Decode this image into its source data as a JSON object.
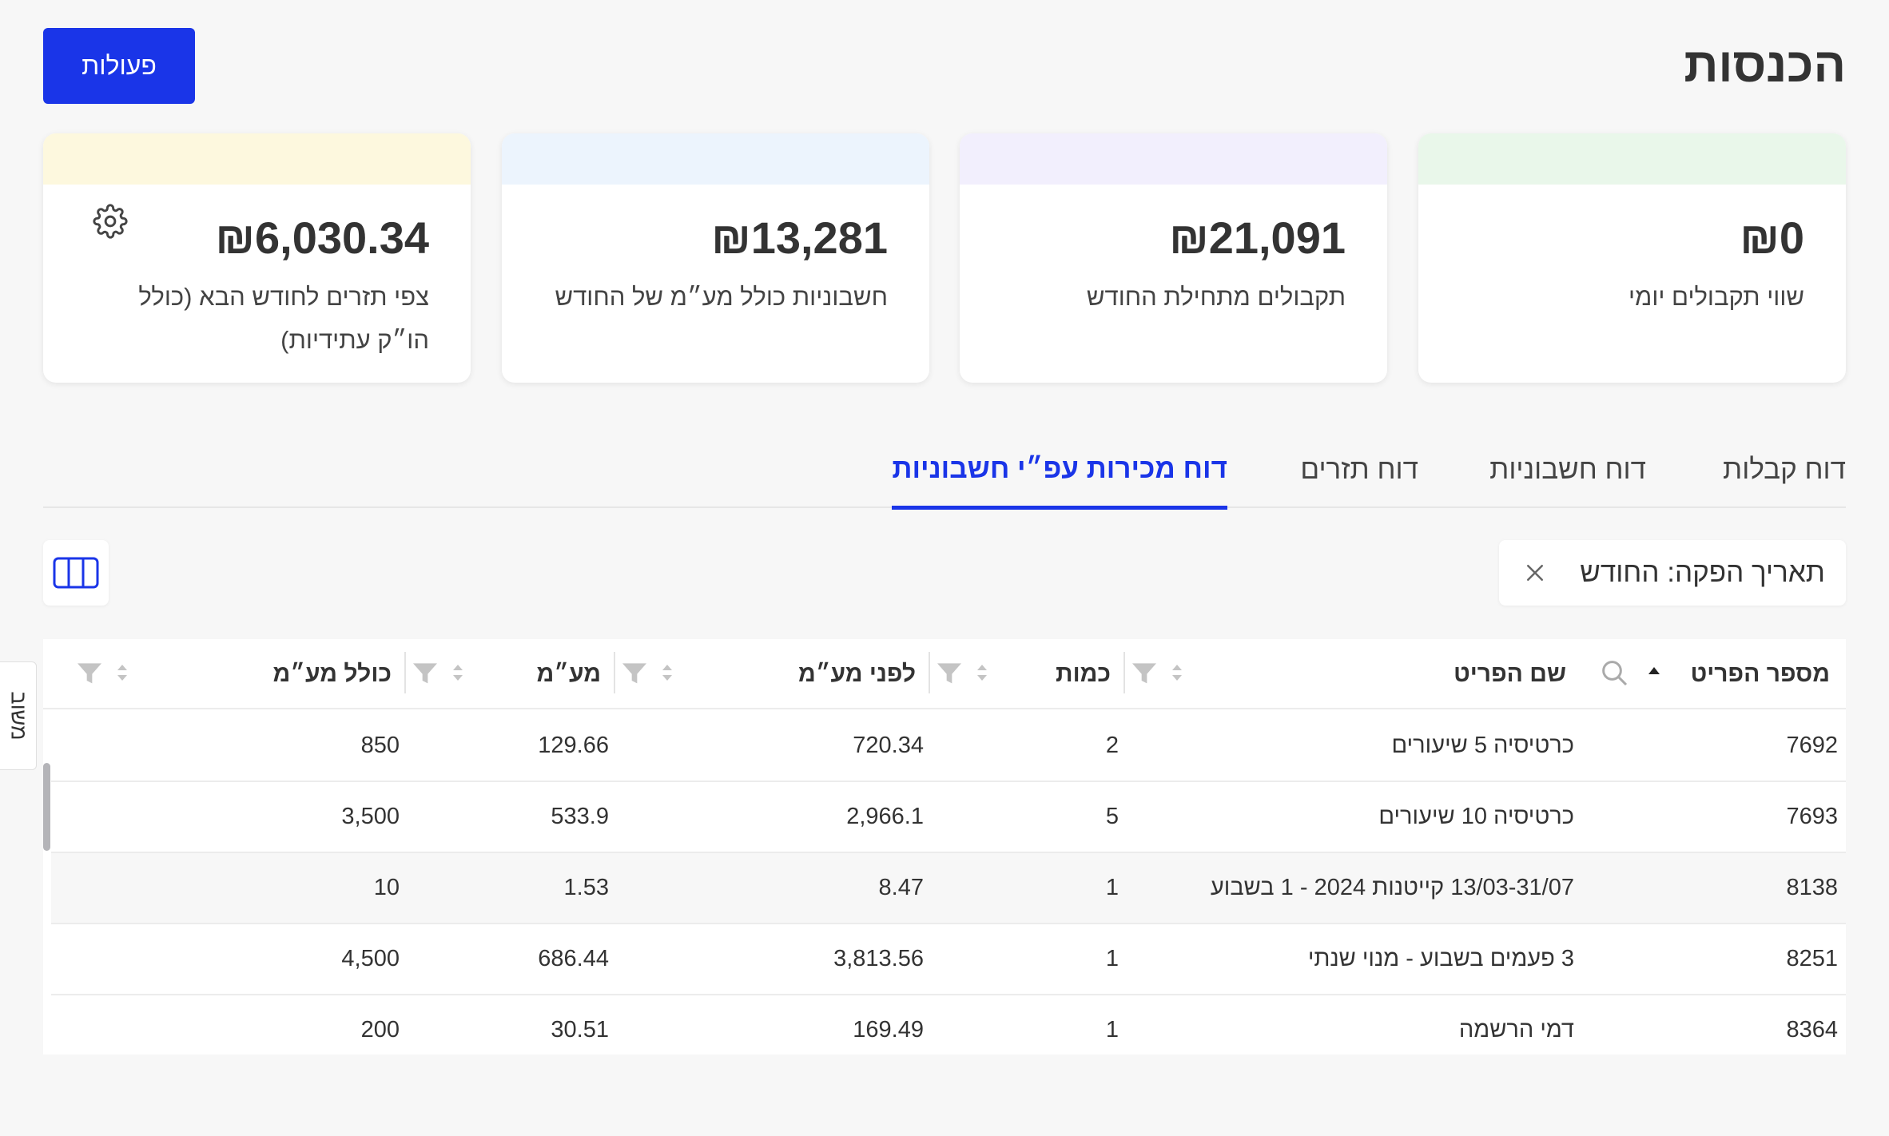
{
  "header": {
    "title": "הכנסות",
    "actions_label": "פעולות"
  },
  "cards": [
    {
      "value": "₪0",
      "label": "שווי תקבולים יומי",
      "band_color": "#e9f7ea"
    },
    {
      "value": "₪21,091",
      "label": "תקבולים מתחילת החודש",
      "band_color": "#f2effd"
    },
    {
      "value": "₪13,281",
      "label": "חשבוניות כולל מע״מ של החודש",
      "band_color": "#ecf4fd"
    },
    {
      "value": "₪6,030.34",
      "label": "צפי תזרים לחודש הבא (כולל הו״ק עתידיות)",
      "band_color": "#fdf8de",
      "icon": "gear-icon"
    }
  ],
  "tabs": [
    {
      "label": "דוח קבלות",
      "active": false
    },
    {
      "label": "דוח חשבוניות",
      "active": false
    },
    {
      "label": "דוח תזרים",
      "active": false
    },
    {
      "label": "דוח מכירות עפ״י חשבוניות",
      "active": true
    }
  ],
  "filter": {
    "label": "תאריך הפקה: החודש"
  },
  "feedback": {
    "label": "משוב"
  },
  "table": {
    "columns": [
      "מספר הפריט",
      "שם הפריט",
      "כמות",
      "לפני מע״מ",
      "מע״מ",
      "כולל מע״מ"
    ],
    "rows": [
      [
        "7692",
        "כרטיסיה 5 שיעורים",
        "2",
        "720.34",
        "129.66",
        "850"
      ],
      [
        "7693",
        "כרטיסיה 10 שיעורים",
        "5",
        "2,966.1",
        "533.9",
        "3,500"
      ],
      [
        "8138",
        "13/03-31/07 קייטנות 2024 - 1 בשבוע",
        "1",
        "8.47",
        "1.53",
        "10"
      ],
      [
        "8251",
        "3 פעמים בשבוע - מנוי שנתי",
        "1",
        "3,813.56",
        "686.44",
        "4,500"
      ],
      [
        "8364",
        "דמי הרשמה",
        "1",
        "169.49",
        "30.51",
        "200"
      ]
    ]
  },
  "colors": {
    "accent": "#1a35e8",
    "text": "#333333",
    "background": "#f7f7f7"
  }
}
